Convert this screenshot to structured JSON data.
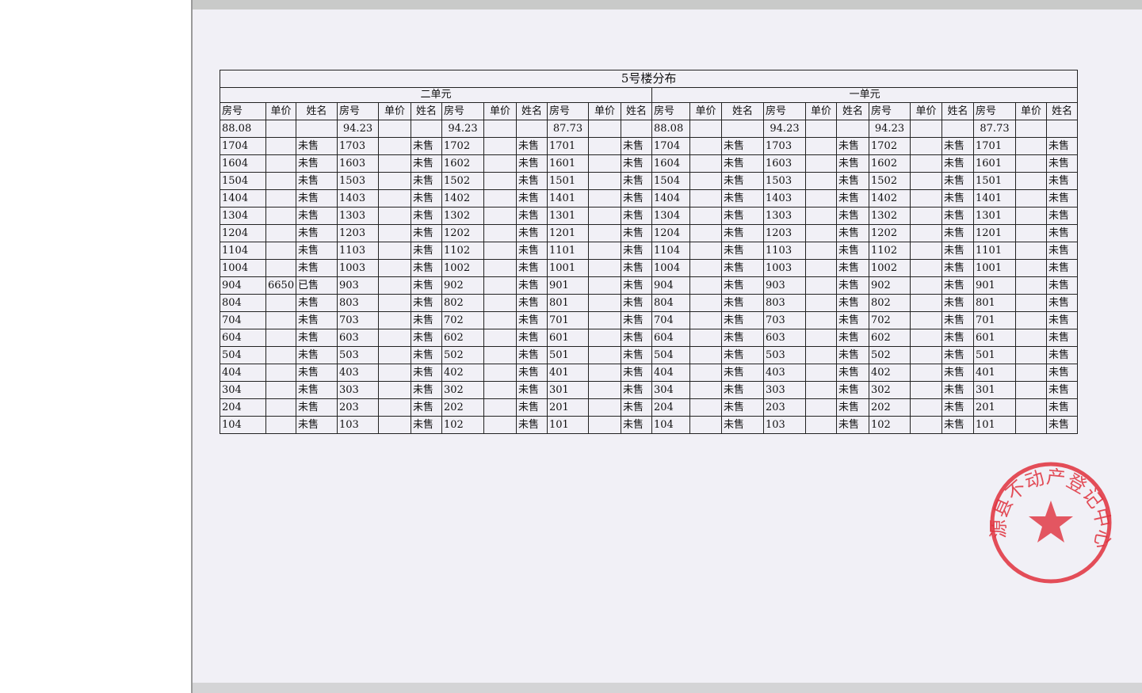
{
  "document": {
    "title": "5号楼分布",
    "units": [
      "二单元",
      "一单元"
    ],
    "headers": [
      "房号",
      "单价",
      "姓名",
      "房号",
      "单价",
      "姓名",
      "房号",
      "单价",
      "姓名",
      "房号",
      "单价",
      "姓名",
      "房号",
      "单价",
      "姓名",
      "房号",
      "单价",
      "姓名",
      "房号",
      "单价",
      "姓名",
      "房号",
      "单价",
      "姓名"
    ],
    "areas": [
      "88.08",
      "",
      "",
      "94.23",
      "",
      "",
      "94.23",
      "",
      "",
      "87.73",
      "",
      "",
      "88.08",
      "",
      "",
      "94.23",
      "",
      "",
      "94.23",
      "",
      "",
      "87.73",
      "",
      ""
    ],
    "rows": [
      [
        "1704",
        "",
        "未售",
        "1703",
        "",
        "未售",
        "1702",
        "",
        "未售",
        "1701",
        "",
        "未售",
        "1704",
        "",
        "未售",
        "1703",
        "",
        "未售",
        "1702",
        "",
        "未售",
        "1701",
        "",
        "未售"
      ],
      [
        "1604",
        "",
        "未售",
        "1603",
        "",
        "未售",
        "1602",
        "",
        "未售",
        "1601",
        "",
        "未售",
        "1604",
        "",
        "未售",
        "1603",
        "",
        "未售",
        "1602",
        "",
        "未售",
        "1601",
        "",
        "未售"
      ],
      [
        "1504",
        "",
        "未售",
        "1503",
        "",
        "未售",
        "1502",
        "",
        "未售",
        "1501",
        "",
        "未售",
        "1504",
        "",
        "未售",
        "1503",
        "",
        "未售",
        "1502",
        "",
        "未售",
        "1501",
        "",
        "未售"
      ],
      [
        "1404",
        "",
        "未售",
        "1403",
        "",
        "未售",
        "1402",
        "",
        "未售",
        "1401",
        "",
        "未售",
        "1404",
        "",
        "未售",
        "1403",
        "",
        "未售",
        "1402",
        "",
        "未售",
        "1401",
        "",
        "未售"
      ],
      [
        "1304",
        "",
        "未售",
        "1303",
        "",
        "未售",
        "1302",
        "",
        "未售",
        "1301",
        "",
        "未售",
        "1304",
        "",
        "未售",
        "1303",
        "",
        "未售",
        "1302",
        "",
        "未售",
        "1301",
        "",
        "未售"
      ],
      [
        "1204",
        "",
        "未售",
        "1203",
        "",
        "未售",
        "1202",
        "",
        "未售",
        "1201",
        "",
        "未售",
        "1204",
        "",
        "未售",
        "1203",
        "",
        "未售",
        "1202",
        "",
        "未售",
        "1201",
        "",
        "未售"
      ],
      [
        "1104",
        "",
        "未售",
        "1103",
        "",
        "未售",
        "1102",
        "",
        "未售",
        "1101",
        "",
        "未售",
        "1104",
        "",
        "未售",
        "1103",
        "",
        "未售",
        "1102",
        "",
        "未售",
        "1101",
        "",
        "未售"
      ],
      [
        "1004",
        "",
        "未售",
        "1003",
        "",
        "未售",
        "1002",
        "",
        "未售",
        "1001",
        "",
        "未售",
        "1004",
        "",
        "未售",
        "1003",
        "",
        "未售",
        "1002",
        "",
        "未售",
        "1001",
        "",
        "未售"
      ],
      [
        "904",
        "6650",
        "已售",
        "903",
        "",
        "未售",
        "902",
        "",
        "未售",
        "901",
        "",
        "未售",
        "904",
        "",
        "未售",
        "903",
        "",
        "未售",
        "902",
        "",
        "未售",
        "901",
        "",
        "未售"
      ],
      [
        "804",
        "",
        "未售",
        "803",
        "",
        "未售",
        "802",
        "",
        "未售",
        "801",
        "",
        "未售",
        "804",
        "",
        "未售",
        "803",
        "",
        "未售",
        "802",
        "",
        "未售",
        "801",
        "",
        "未售"
      ],
      [
        "704",
        "",
        "未售",
        "703",
        "",
        "未售",
        "702",
        "",
        "未售",
        "701",
        "",
        "未售",
        "704",
        "",
        "未售",
        "703",
        "",
        "未售",
        "702",
        "",
        "未售",
        "701",
        "",
        "未售"
      ],
      [
        "604",
        "",
        "未售",
        "603",
        "",
        "未售",
        "602",
        "",
        "未售",
        "601",
        "",
        "未售",
        "604",
        "",
        "未售",
        "603",
        "",
        "未售",
        "602",
        "",
        "未售",
        "601",
        "",
        "未售"
      ],
      [
        "504",
        "",
        "未售",
        "503",
        "",
        "未售",
        "502",
        "",
        "未售",
        "501",
        "",
        "未售",
        "504",
        "",
        "未售",
        "503",
        "",
        "未售",
        "502",
        "",
        "未售",
        "501",
        "",
        "未售"
      ],
      [
        "404",
        "",
        "未售",
        "403",
        "",
        "未售",
        "402",
        "",
        "未售",
        "401",
        "",
        "未售",
        "404",
        "",
        "未售",
        "403",
        "",
        "未售",
        "402",
        "",
        "未售",
        "401",
        "",
        "未售"
      ],
      [
        "304",
        "",
        "未售",
        "303",
        "",
        "未售",
        "302",
        "",
        "未售",
        "301",
        "",
        "未售",
        "304",
        "",
        "未售",
        "303",
        "",
        "未售",
        "302",
        "",
        "未售",
        "301",
        "",
        "未售"
      ],
      [
        "204",
        "",
        "未售",
        "203",
        "",
        "未售",
        "202",
        "",
        "未售",
        "201",
        "",
        "未售",
        "204",
        "",
        "未售",
        "203",
        "",
        "未售",
        "202",
        "",
        "未售",
        "201",
        "",
        "未售"
      ],
      [
        "104",
        "",
        "未售",
        "103",
        "",
        "未售",
        "102",
        "",
        "未售",
        "101",
        "",
        "未售",
        "104",
        "",
        "未售",
        "103",
        "",
        "未售",
        "102",
        "",
        "未售",
        "101",
        "",
        "未售"
      ]
    ]
  },
  "stamp": {
    "text": "源县不动产登记中心",
    "color": "#e0303c"
  }
}
